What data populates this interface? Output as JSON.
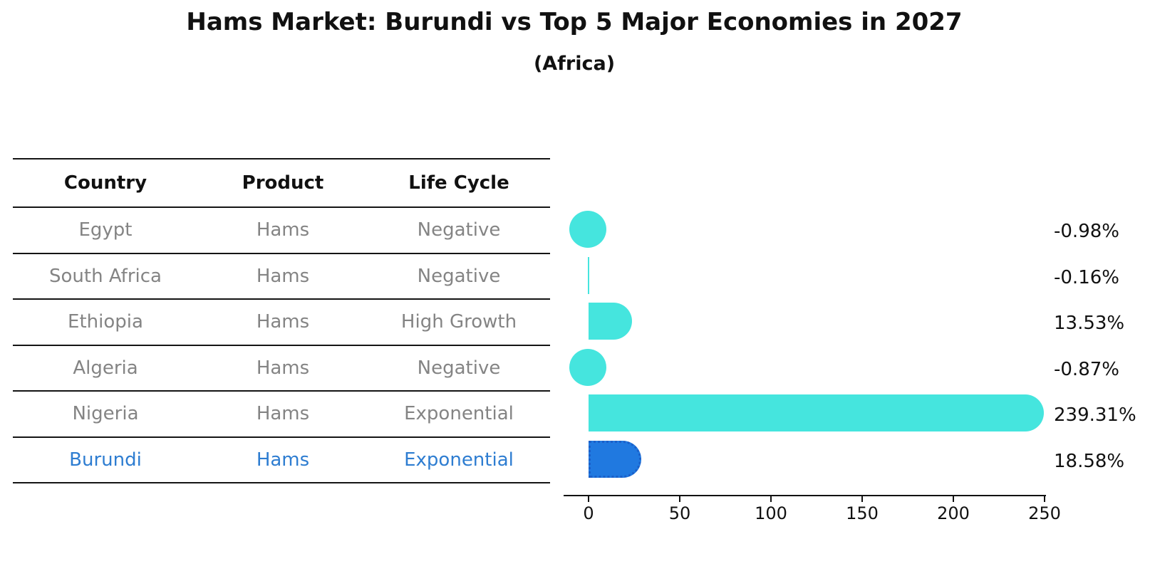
{
  "title": "Hams Market: Burundi vs Top 5 Major Economies in 2027",
  "subtitle": "(Africa)",
  "table": {
    "headers": [
      "Country",
      "Product",
      "Life Cycle"
    ],
    "rows": [
      {
        "country": "Egypt",
        "product": "Hams",
        "life_cycle": "Negative",
        "highlight": false
      },
      {
        "country": "South Africa",
        "product": "Hams",
        "life_cycle": "Negative",
        "highlight": false
      },
      {
        "country": "Ethiopia",
        "product": "Hams",
        "life_cycle": "High Growth",
        "highlight": false
      },
      {
        "country": "Algeria",
        "product": "Hams",
        "life_cycle": "Negative",
        "highlight": false
      },
      {
        "country": "Nigeria",
        "product": "Hams",
        "life_cycle": "Exponential",
        "highlight": false
      },
      {
        "country": "Burundi",
        "product": "Hams",
        "life_cycle": "Exponential",
        "highlight": true
      }
    ]
  },
  "chart_data": {
    "type": "bar",
    "orientation": "horizontal",
    "title": "Hams Market: Burundi vs Top 5 Major Economies in 2027 (Africa)",
    "categories": [
      "Egypt",
      "South Africa",
      "Ethiopia",
      "Algeria",
      "Nigeria",
      "Burundi"
    ],
    "values": [
      -0.98,
      -0.16,
      13.53,
      -0.87,
      239.31,
      18.58
    ],
    "value_labels": [
      "-0.98%",
      "-0.16%",
      "13.53%",
      "-0.87%",
      "239.31%",
      "18.58%"
    ],
    "x_ticks": [
      0,
      50,
      100,
      150,
      200,
      250
    ],
    "xlim": [
      -14,
      251
    ],
    "xlabel": "",
    "ylabel": "",
    "grid": false,
    "legend": "none",
    "colors": {
      "bar": "#45E5DE",
      "highlight_bar": "#2079E0",
      "highlight_border": "#1A5FC9",
      "highlight_text": "#2E7DD1",
      "row_text": "#848484",
      "header_text": "#111111",
      "axis": "#111111"
    }
  }
}
